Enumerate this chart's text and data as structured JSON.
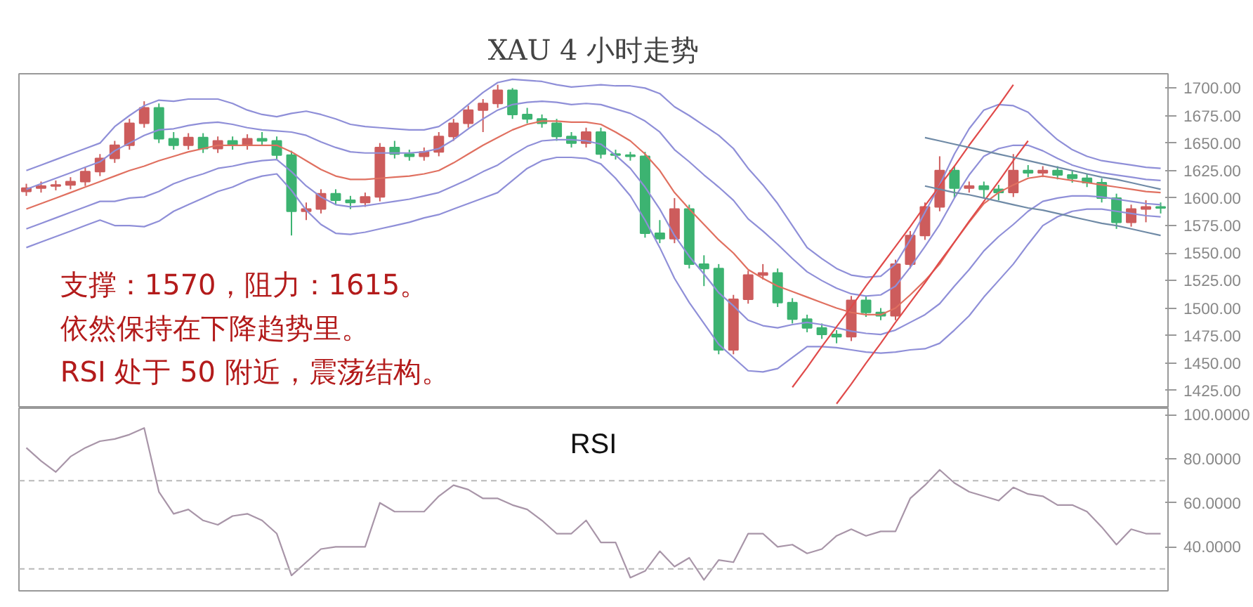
{
  "chart_data": [
    {
      "type": "candlestick",
      "title": "XAU 4 小时走势",
      "categories": [
        null,
        null,
        null,
        null,
        null,
        null,
        null,
        null,
        null,
        null,
        null,
        null,
        null,
        null,
        null,
        null,
        null,
        null,
        null,
        null,
        null,
        null,
        null,
        null,
        null,
        null,
        null,
        null,
        null,
        null,
        null,
        null,
        null,
        null,
        null,
        null,
        null,
        null,
        null,
        null,
        null,
        null,
        null,
        null,
        null,
        null,
        null,
        null,
        null,
        null,
        null,
        null,
        null,
        null,
        null,
        null,
        null,
        null,
        null,
        null,
        null,
        null,
        null,
        null,
        null,
        null,
        null,
        null,
        null,
        null,
        null,
        null,
        null,
        null,
        null,
        null,
        null,
        null
      ],
      "ohlc": [
        [
          1606,
          1613,
          1602,
          1609
        ],
        [
          1609,
          1615,
          1605,
          1611
        ],
        [
          1611,
          1616,
          1607,
          1612
        ],
        [
          1612,
          1619,
          1608,
          1615
        ],
        [
          1615,
          1628,
          1611,
          1624
        ],
        [
          1624,
          1640,
          1620,
          1636
        ],
        [
          1636,
          1652,
          1632,
          1648
        ],
        [
          1648,
          1672,
          1644,
          1668
        ],
        [
          1668,
          1688,
          1664,
          1682
        ],
        [
          1682,
          1686,
          1650,
          1654
        ],
        [
          1654,
          1660,
          1644,
          1648
        ],
        [
          1648,
          1659,
          1644,
          1655
        ],
        [
          1655,
          1659,
          1641,
          1645
        ],
        [
          1645,
          1656,
          1641,
          1652
        ],
        [
          1652,
          1656,
          1644,
          1648
        ],
        [
          1648,
          1658,
          1644,
          1654
        ],
        [
          1654,
          1660,
          1648,
          1652
        ],
        [
          1652,
          1656,
          1635,
          1639
        ],
        [
          1639,
          1643,
          1566,
          1588
        ],
        [
          1588,
          1596,
          1580,
          1590
        ],
        [
          1590,
          1608,
          1586,
          1604
        ],
        [
          1604,
          1608,
          1594,
          1598
        ],
        [
          1598,
          1602,
          1590,
          1596
        ],
        [
          1596,
          1605,
          1592,
          1601
        ],
        [
          1601,
          1650,
          1597,
          1646
        ],
        [
          1646,
          1652,
          1636,
          1640
        ],
        [
          1640,
          1644,
          1634,
          1638
        ],
        [
          1638,
          1646,
          1634,
          1642
        ],
        [
          1642,
          1660,
          1638,
          1656
        ],
        [
          1656,
          1672,
          1652,
          1668
        ],
        [
          1668,
          1684,
          1664,
          1680
        ],
        [
          1680,
          1690,
          1660,
          1686
        ],
        [
          1686,
          1703,
          1682,
          1698
        ],
        [
          1698,
          1700,
          1672,
          1676
        ],
        [
          1676,
          1682,
          1668,
          1672
        ],
        [
          1672,
          1676,
          1664,
          1668
        ],
        [
          1668,
          1672,
          1652,
          1656
        ],
        [
          1656,
          1660,
          1646,
          1650
        ],
        [
          1650,
          1664,
          1646,
          1660
        ],
        [
          1660,
          1664,
          1636,
          1640
        ],
        [
          1640,
          1644,
          1635,
          1639
        ],
        [
          1639,
          1642,
          1634,
          1638
        ],
        [
          1638,
          1642,
          1564,
          1568
        ],
        [
          1568,
          1580,
          1559,
          1563
        ],
        [
          1563,
          1600,
          1559,
          1590
        ],
        [
          1590,
          1594,
          1536,
          1540
        ],
        [
          1540,
          1548,
          1520,
          1536
        ],
        [
          1536,
          1540,
          1458,
          1462
        ],
        [
          1462,
          1512,
          1458,
          1508
        ],
        [
          1508,
          1534,
          1504,
          1530
        ],
        [
          1530,
          1540,
          1526,
          1532
        ],
        [
          1532,
          1536,
          1501,
          1505
        ],
        [
          1505,
          1509,
          1486,
          1490
        ],
        [
          1490,
          1494,
          1478,
          1482
        ],
        [
          1482,
          1486,
          1472,
          1476
        ],
        [
          1476,
          1480,
          1468,
          1474
        ],
        [
          1474,
          1511,
          1470,
          1507
        ],
        [
          1507,
          1511,
          1492,
          1496
        ],
        [
          1496,
          1500,
          1489,
          1493
        ],
        [
          1493,
          1544,
          1489,
          1540
        ],
        [
          1540,
          1570,
          1536,
          1566
        ],
        [
          1566,
          1596,
          1562,
          1592
        ],
        [
          1592,
          1638,
          1588,
          1625
        ],
        [
          1625,
          1629,
          1600,
          1609
        ],
        [
          1609,
          1615,
          1605,
          1611
        ],
        [
          1611,
          1615,
          1600,
          1608
        ],
        [
          1608,
          1612,
          1598,
          1605
        ],
        [
          1605,
          1640,
          1601,
          1625
        ],
        [
          1625,
          1630,
          1619,
          1623
        ],
        [
          1623,
          1629,
          1619,
          1625
        ],
        [
          1625,
          1629,
          1617,
          1621
        ],
        [
          1621,
          1625,
          1614,
          1618
        ],
        [
          1618,
          1622,
          1610,
          1614
        ],
        [
          1614,
          1618,
          1596,
          1600
        ],
        [
          1600,
          1604,
          1572,
          1578
        ],
        [
          1578,
          1594,
          1574,
          1590
        ],
        [
          1590,
          1598,
          1578,
          1592
        ],
        [
          1592,
          1596,
          1586,
          1591
        ]
      ],
      "colors": [
        "#cd5c5c",
        "#cd5c5c",
        "#cd5c5c",
        "#cd5c5c",
        "#cd5c5c",
        "#cd5c5c",
        "#cd5c5c",
        "#cd5c5c",
        "#cd5c5c",
        "#3cb371",
        "#3cb371",
        "#cd5c5c",
        "#3cb371",
        "#cd5c5c",
        "#3cb371",
        "#cd5c5c",
        "#3cb371",
        "#3cb371",
        "#3cb371",
        "#cd5c5c",
        "#cd5c5c",
        "#3cb371",
        "#3cb371",
        "#cd5c5c",
        "#cd5c5c",
        "#3cb371",
        "#3cb371",
        "#cd5c5c",
        "#cd5c5c",
        "#cd5c5c",
        "#cd5c5c",
        "#cd5c5c",
        "#cd5c5c",
        "#3cb371",
        "#3cb371",
        "#3cb371",
        "#3cb371",
        "#3cb371",
        "#cd5c5c",
        "#3cb371",
        "#3cb371",
        "#3cb371",
        "#3cb371",
        "#3cb371",
        "#cd5c5c",
        "#3cb371",
        "#3cb371",
        "#3cb371",
        "#cd5c5c",
        "#cd5c5c",
        "#cd5c5c",
        "#3cb371",
        "#3cb371",
        "#3cb371",
        "#3cb371",
        "#3cb371",
        "#cd5c5c",
        "#3cb371",
        "#3cb371",
        "#cd5c5c",
        "#cd5c5c",
        "#cd5c5c",
        "#cd5c5c",
        "#3cb371",
        "#cd5c5c",
        "#3cb371",
        "#3cb371",
        "#cd5c5c",
        "#3cb371",
        "#cd5c5c",
        "#3cb371",
        "#3cb371",
        "#3cb371",
        "#3cb371",
        "#3cb371",
        "#cd5c5c",
        "#cd5c5c",
        "#3cb371"
      ],
      "ylim": [
        1409,
        1713
      ],
      "yticks": [
        {
          "value": 1425,
          "label": "1425.00"
        },
        {
          "value": 1450,
          "label": "1450.00"
        },
        {
          "value": 1475,
          "label": "1475.00"
        },
        {
          "value": 1500,
          "label": "1500.00"
        },
        {
          "value": 1525,
          "label": "1525.00"
        },
        {
          "value": 1550,
          "label": "1550.00"
        },
        {
          "value": 1575,
          "label": "1575.00"
        },
        {
          "value": 1600,
          "label": "1600.00"
        },
        {
          "value": 1625,
          "label": "1625.00"
        },
        {
          "value": 1650,
          "label": "1650.00"
        },
        {
          "value": 1675,
          "label": "1675.00"
        },
        {
          "value": 1700,
          "label": "1700.00"
        }
      ],
      "tick_labels": "y",
      "annotations": [
        "支撑：1570，阻力：1615。",
        "依然保持在下降趋势里。",
        "RSI 处于 50 附近，震荡结构。"
      ]
    },
    {
      "type": "line",
      "categories": [
        null,
        null,
        null,
        null,
        null,
        null,
        null,
        null,
        null,
        null,
        null,
        null,
        null,
        null,
        null,
        null,
        null,
        null,
        null,
        null,
        null,
        null,
        null,
        null,
        null,
        null,
        null,
        null,
        null,
        null,
        null,
        null,
        null,
        null,
        null,
        null,
        null,
        null,
        null,
        null,
        null,
        null,
        null,
        null,
        null,
        null,
        null,
        null,
        null,
        null,
        null,
        null,
        null,
        null,
        null,
        null,
        null,
        null,
        null,
        null,
        null,
        null,
        null,
        null,
        null,
        null,
        null,
        null,
        null,
        null,
        null,
        null,
        null,
        null,
        null,
        null,
        null,
        null
      ],
      "series": [
        {
          "type": "line",
          "color": "#8f8fd8",
          "values": [
            1625,
            1630,
            1635,
            1640,
            1645,
            1650,
            1665,
            1675,
            1684,
            1689,
            1688,
            1690,
            1690,
            1690,
            1686,
            1680,
            1676,
            1674,
            1677,
            1679,
            1676,
            1672,
            1667,
            1665,
            1664,
            1663,
            1662,
            1662,
            1665,
            1674,
            1685,
            1696,
            1705,
            1708,
            1707,
            1706,
            1703,
            1701,
            1702,
            1703,
            1702,
            1702,
            1700,
            1695,
            1683,
            1675,
            1666,
            1657,
            1645,
            1627,
            1612,
            1595,
            1575,
            1555,
            1545,
            1536,
            1530,
            1528,
            1529,
            1540,
            1562,
            1587,
            1612,
            1640,
            1663,
            1680,
            1685,
            1684,
            1678,
            1665,
            1653,
            1644,
            1638,
            1634,
            1632,
            1630,
            1628,
            1627
          ]
        },
        {
          "type": "line",
          "color": "#8f8fd8",
          "values": [
            1608,
            1613,
            1618,
            1623,
            1628,
            1633,
            1643,
            1650,
            1657,
            1662,
            1663,
            1666,
            1668,
            1669,
            1667,
            1664,
            1662,
            1661,
            1660,
            1657,
            1651,
            1646,
            1642,
            1641,
            1641,
            1641,
            1641,
            1642,
            1645,
            1653,
            1663,
            1672,
            1680,
            1685,
            1687,
            1688,
            1687,
            1685,
            1686,
            1685,
            1681,
            1677,
            1670,
            1660,
            1644,
            1633,
            1621,
            1610,
            1598,
            1581,
            1570,
            1558,
            1545,
            1533,
            1525,
            1518,
            1513,
            1511,
            1512,
            1520,
            1537,
            1556,
            1576,
            1600,
            1621,
            1638,
            1645,
            1648,
            1648,
            1643,
            1636,
            1630,
            1626,
            1623,
            1621,
            1619,
            1617,
            1616
          ]
        },
        {
          "type": "line",
          "color": "#e07060",
          "values": [
            1590,
            1595,
            1600,
            1605,
            1610,
            1615,
            1620,
            1625,
            1629,
            1634,
            1638,
            1642,
            1645,
            1648,
            1648,
            1648,
            1648,
            1648,
            1642,
            1634,
            1626,
            1620,
            1617,
            1617,
            1618,
            1619,
            1620,
            1622,
            1625,
            1632,
            1640,
            1648,
            1655,
            1662,
            1667,
            1670,
            1670,
            1669,
            1669,
            1667,
            1660,
            1652,
            1640,
            1625,
            1605,
            1590,
            1576,
            1562,
            1550,
            1535,
            1527,
            1520,
            1515,
            1510,
            1505,
            1500,
            1496,
            1494,
            1494,
            1500,
            1512,
            1525,
            1540,
            1560,
            1578,
            1595,
            1605,
            1612,
            1618,
            1620,
            1618,
            1616,
            1614,
            1612,
            1610,
            1608,
            1606,
            1605
          ]
        },
        {
          "type": "line",
          "color": "#8f8fd8",
          "values": [
            1572,
            1577,
            1582,
            1587,
            1592,
            1597,
            1597,
            1600,
            1601,
            1606,
            1613,
            1618,
            1622,
            1627,
            1629,
            1632,
            1634,
            1635,
            1624,
            1611,
            1601,
            1594,
            1592,
            1593,
            1595,
            1597,
            1599,
            1602,
            1605,
            1611,
            1617,
            1624,
            1630,
            1639,
            1647,
            1652,
            1653,
            1653,
            1652,
            1649,
            1639,
            1627,
            1610,
            1590,
            1566,
            1547,
            1531,
            1514,
            1502,
            1489,
            1484,
            1482,
            1485,
            1487,
            1485,
            1482,
            1479,
            1477,
            1476,
            1480,
            1487,
            1494,
            1504,
            1520,
            1535,
            1552,
            1565,
            1576,
            1588,
            1597,
            1600,
            1602,
            1602,
            1601,
            1599,
            1597,
            1595,
            1594
          ]
        },
        {
          "type": "line",
          "color": "#8f8fd8",
          "values": [
            1555,
            1560,
            1565,
            1570,
            1575,
            1580,
            1575,
            1575,
            1574,
            1579,
            1588,
            1594,
            1600,
            1606,
            1610,
            1616,
            1620,
            1622,
            1607,
            1589,
            1576,
            1568,
            1567,
            1569,
            1572,
            1575,
            1578,
            1582,
            1585,
            1590,
            1595,
            1600,
            1605,
            1616,
            1627,
            1634,
            1637,
            1637,
            1636,
            1631,
            1618,
            1602,
            1580,
            1555,
            1527,
            1505,
            1486,
            1467,
            1455,
            1443,
            1442,
            1445,
            1455,
            1465,
            1465,
            1464,
            1462,
            1460,
            1459,
            1460,
            1462,
            1463,
            1468,
            1480,
            1493,
            1510,
            1525,
            1540,
            1558,
            1575,
            1583,
            1588,
            1590,
            1590,
            1588,
            1586,
            1584,
            1583
          ]
        },
        {
          "type": "line",
          "color": "#e04a4a",
          "values": [
            null,
            null,
            null,
            null,
            null,
            null,
            null,
            null,
            null,
            null,
            null,
            null,
            null,
            null,
            null,
            null,
            null,
            null,
            null,
            null,
            null,
            null,
            null,
            null,
            null,
            null,
            null,
            null,
            null,
            null,
            null,
            null,
            null,
            null,
            null,
            null,
            null,
            null,
            null,
            null,
            null,
            null,
            null,
            null,
            null,
            null,
            null,
            null,
            null,
            null,
            null,
            null,
            1428,
            1446,
            1465,
            1483,
            1501,
            1520,
            1538,
            1556,
            1574,
            1593,
            1611,
            1629,
            1648,
            1666,
            1684,
            1703,
            null,
            null,
            null,
            null,
            null,
            null,
            null,
            null,
            null,
            null
          ]
        },
        {
          "type": "line",
          "color": "#e04a4a",
          "values": [
            null,
            null,
            null,
            null,
            null,
            null,
            null,
            null,
            null,
            null,
            null,
            null,
            null,
            null,
            null,
            null,
            null,
            null,
            null,
            null,
            null,
            null,
            null,
            null,
            null,
            null,
            null,
            null,
            null,
            null,
            null,
            null,
            null,
            null,
            null,
            null,
            null,
            null,
            null,
            null,
            null,
            null,
            null,
            null,
            null,
            null,
            null,
            null,
            null,
            null,
            null,
            null,
            null,
            null,
            null,
            1413,
            1431,
            1450,
            1468,
            1487,
            1505,
            1523,
            1542,
            1560,
            1579,
            1597,
            1615,
            1634,
            1652,
            null,
            null,
            null,
            null,
            null,
            null,
            null,
            null,
            null
          ]
        },
        {
          "type": "line",
          "color": "#6f8aa6",
          "values": [
            null,
            null,
            null,
            null,
            null,
            null,
            null,
            null,
            null,
            null,
            null,
            null,
            null,
            null,
            null,
            null,
            null,
            null,
            null,
            null,
            null,
            null,
            null,
            null,
            null,
            null,
            null,
            null,
            null,
            null,
            null,
            null,
            null,
            null,
            null,
            null,
            null,
            null,
            null,
            null,
            null,
            null,
            null,
            null,
            null,
            null,
            null,
            null,
            null,
            null,
            null,
            null,
            null,
            null,
            null,
            null,
            null,
            null,
            null,
            null,
            null,
            1655,
            1652,
            1649,
            1646,
            1643,
            1640,
            1637,
            1634,
            1631,
            1628,
            1625,
            1622,
            1619,
            1617,
            1614,
            1611,
            1608
          ]
        },
        {
          "type": "line",
          "color": "#6f8aa6",
          "values": [
            null,
            null,
            null,
            null,
            null,
            null,
            null,
            null,
            null,
            null,
            null,
            null,
            null,
            null,
            null,
            null,
            null,
            null,
            null,
            null,
            null,
            null,
            null,
            null,
            null,
            null,
            null,
            null,
            null,
            null,
            null,
            null,
            null,
            null,
            null,
            null,
            null,
            null,
            null,
            null,
            null,
            null,
            null,
            null,
            null,
            null,
            null,
            null,
            null,
            null,
            null,
            null,
            null,
            null,
            null,
            null,
            null,
            null,
            null,
            null,
            null,
            1611,
            1608,
            1605,
            1603,
            1600,
            1597,
            1594,
            1591,
            1589,
            1586,
            1583,
            1580,
            1577,
            1575,
            1572,
            1569,
            1566
          ]
        }
      ],
      "ylim": [
        1409,
        1713
      ],
      "tick_labels": false
    },
    {
      "type": "line",
      "title": "RSI",
      "categories": [
        null,
        null,
        null,
        null,
        null,
        null,
        null,
        null,
        null,
        null,
        null,
        null,
        null,
        null,
        null,
        null,
        null,
        null,
        null,
        null,
        null,
        null,
        null,
        null,
        null,
        null,
        null,
        null,
        null,
        null,
        null,
        null,
        null,
        null,
        null,
        null,
        null,
        null,
        null,
        null,
        null,
        null,
        null,
        null,
        null,
        null,
        null,
        null,
        null,
        null,
        null,
        null,
        null,
        null,
        null,
        null,
        null,
        null,
        null,
        null,
        null,
        null,
        null,
        null,
        null,
        null,
        null,
        null,
        null,
        null,
        null,
        null,
        null,
        null,
        null,
        null,
        null,
        null
      ],
      "series": [
        {
          "color": "#a895a8",
          "values": [
            85,
            79,
            74,
            81,
            85,
            88,
            89,
            91,
            94,
            65,
            55,
            57,
            52,
            50,
            54,
            55,
            52,
            46,
            27,
            33,
            39,
            40,
            40,
            40,
            60,
            56,
            56,
            56,
            63,
            68,
            66,
            62,
            62,
            59,
            57,
            52,
            46,
            46,
            52,
            42,
            42,
            26,
            29,
            38,
            31,
            35,
            25,
            34,
            33,
            46,
            46,
            40,
            41,
            37,
            39,
            45,
            48,
            45,
            47,
            47,
            62,
            68,
            75,
            69,
            65,
            63,
            61,
            67,
            64,
            63,
            59,
            59,
            56,
            49,
            41,
            48,
            46,
            46
          ]
        }
      ],
      "ylim": [
        20,
        103
      ],
      "yticks": [
        {
          "value": 40,
          "label": "40.0000"
        },
        {
          "value": 60,
          "label": "60.0000"
        },
        {
          "value": 80,
          "label": "80.0000"
        },
        {
          "value": 100,
          "label": "100.0000"
        }
      ],
      "tick_labels": "y",
      "ref_lines": [
        {
          "axis": "y",
          "value": 70,
          "color": "#b8b8b8",
          "line_style": "dashed"
        },
        {
          "axis": "y",
          "value": 30,
          "color": "#b8b8b8",
          "line_style": "dashed"
        }
      ]
    }
  ]
}
